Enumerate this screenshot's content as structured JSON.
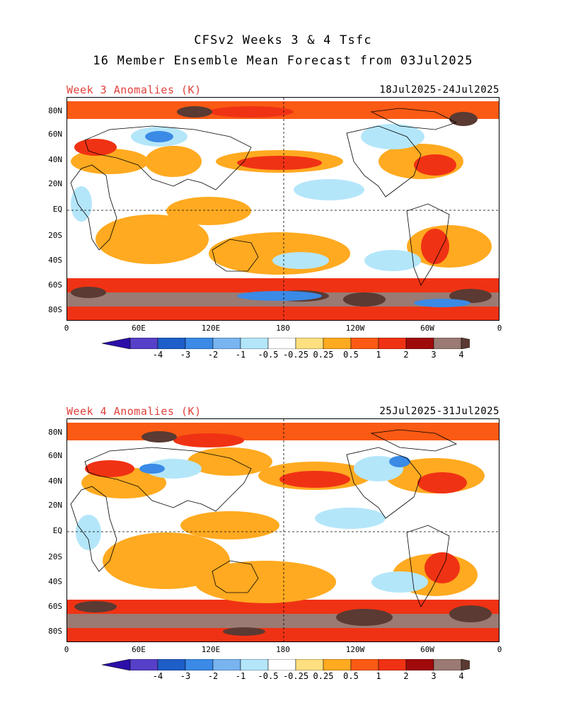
{
  "header": {
    "title_line1": "CFSv2 Weeks 3 & 4 Tsfc",
    "title_line2": "16 Member Ensemble Mean Forecast from 03Jul2025"
  },
  "panels": [
    {
      "label": "Week 3 Anomalies (K)",
      "date_range": "18Jul2025-24Jul2025"
    },
    {
      "label": "Week 4 Anomalies (K)",
      "date_range": "25Jul2025-31Jul2025"
    }
  ],
  "axes": {
    "lat_labels": [
      "80N",
      "60N",
      "40N",
      "20N",
      "EQ",
      "20S",
      "40S",
      "60S",
      "80S"
    ],
    "lon_labels": [
      "0",
      "60E",
      "120E",
      "180",
      "120W",
      "60W",
      "0"
    ]
  },
  "colorbar": {
    "labels": [
      "-4",
      "-3",
      "-2",
      "-1",
      "-0.5",
      "-0.25",
      "0.25",
      "0.5",
      "1",
      "2",
      "3",
      "4"
    ],
    "colors": [
      "#2b0fa8",
      "#5640c8",
      "#1e5ec8",
      "#3a8ae6",
      "#78b4f0",
      "#b4e6fa",
      "#ffffff",
      "#ffe080",
      "#ffaa20",
      "#fa5a14",
      "#f03214",
      "#a00a0a",
      "#9a7a72",
      "#5a3a32"
    ]
  },
  "colors": {
    "warm_strong": "#a00a0a",
    "warm": "#f03214",
    "warm_mid": "#fa5a14",
    "warm_light": "#ffaa20",
    "warm_pale": "#ffe080",
    "cool_pale": "#b4e6fa",
    "cool": "#3a8ae6",
    "cool_strong": "#1e5ec8",
    "extreme_warm": "#5a3a32",
    "extreme_warm2": "#9a7a72",
    "label_red": "#e0403a"
  }
}
